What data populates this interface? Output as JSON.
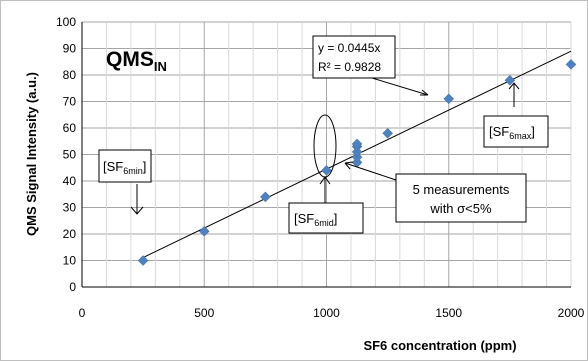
{
  "chart_data": {
    "type": "scatter",
    "xlabel": "SF6 concentration (ppm)",
    "ylabel": "QMS Signal Intensity (a.u.)",
    "xlim": [
      0,
      2000
    ],
    "ylim": [
      0,
      100
    ],
    "x_ticks": [
      0,
      500,
      1000,
      1500,
      2000
    ],
    "y_ticks": [
      0,
      10,
      20,
      30,
      40,
      50,
      60,
      70,
      80,
      90,
      100
    ],
    "grid": true,
    "marker_color": "#4F81BD",
    "points": [
      {
        "x": 250,
        "y": 10
      },
      {
        "x": 500,
        "y": 21
      },
      {
        "x": 750,
        "y": 34
      },
      {
        "x": 1000,
        "y": 44
      },
      {
        "x": 1125,
        "y": 47
      },
      {
        "x": 1125,
        "y": 49
      },
      {
        "x": 1125,
        "y": 51
      },
      {
        "x": 1125,
        "y": 53
      },
      {
        "x": 1125,
        "y": 54
      },
      {
        "x": 1250,
        "y": 58
      },
      {
        "x": 1500,
        "y": 71
      },
      {
        "x": 1750,
        "y": 78
      },
      {
        "x": 2000,
        "y": 84
      }
    ],
    "trendline": {
      "slope": 0.0445,
      "x_range": [
        250,
        2000
      ],
      "equation": "y = 0.0445x",
      "r2": "R² = 0.9828"
    },
    "annotations": {
      "title_main": "QMS",
      "title_sub": "IN",
      "sf6min": {
        "pre": "[SF",
        "sub": "6min",
        "post": "]"
      },
      "sf6mid": {
        "pre": "[SF",
        "sub": "6mid",
        "post": "]"
      },
      "sf6max": {
        "pre": "[SF",
        "sub": "6max",
        "post": "]"
      },
      "measurements_line1": "5 measurements",
      "measurements_line2": "with σ<5%"
    }
  }
}
